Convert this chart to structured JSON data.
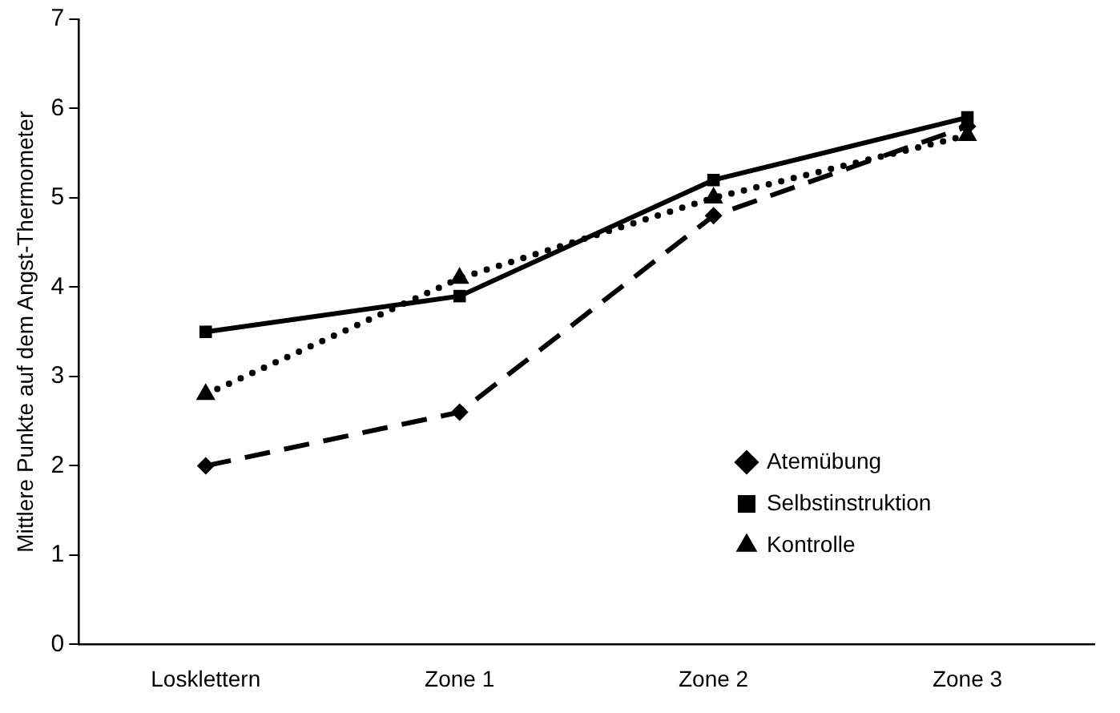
{
  "chart_data": {
    "type": "line",
    "ylabel": "Mittlere Punkte auf dem Angst-Thermometer",
    "categories": [
      "Losklettern",
      "Zone 1",
      "Zone 2",
      "Zone 3"
    ],
    "series": [
      {
        "name": "Atemübung",
        "color": "#000000",
        "values": [
          2.0,
          2.6,
          4.8,
          5.8
        ],
        "marker": "diamond",
        "line_style": "dashed"
      },
      {
        "name": "Selbstinstruktion",
        "color": "#000000",
        "values": [
          3.5,
          3.9,
          5.2,
          5.9
        ],
        "marker": "square",
        "line_style": "solid"
      },
      {
        "name": "Kontrolle",
        "color": "#000000",
        "values": [
          2.8,
          4.1,
          5.0,
          5.7
        ],
        "marker": "triangle",
        "line_style": "dotted"
      }
    ],
    "ylim": [
      0,
      7
    ],
    "yticks": [
      0,
      1,
      2,
      3,
      4,
      5,
      6,
      7
    ],
    "grid": false,
    "legend": "bottom right"
  }
}
